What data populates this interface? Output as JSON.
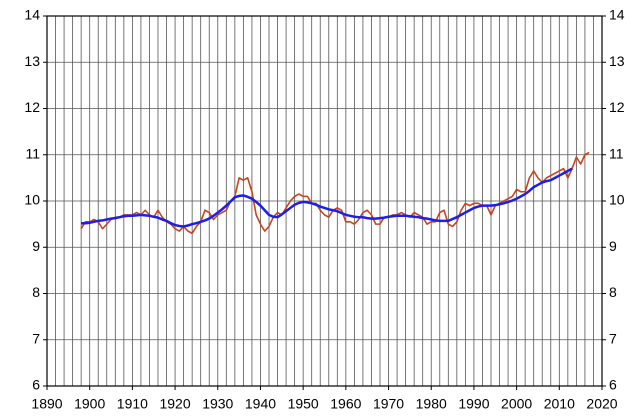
{
  "chart_data": {
    "type": "line",
    "x": [
      1898,
      1899,
      1900,
      1901,
      1902,
      1903,
      1904,
      1905,
      1906,
      1907,
      1908,
      1909,
      1910,
      1911,
      1912,
      1913,
      1914,
      1915,
      1916,
      1917,
      1918,
      1919,
      1920,
      1921,
      1922,
      1923,
      1924,
      1925,
      1926,
      1927,
      1928,
      1929,
      1930,
      1931,
      1932,
      1933,
      1934,
      1935,
      1936,
      1937,
      1938,
      1939,
      1940,
      1941,
      1942,
      1943,
      1944,
      1945,
      1946,
      1947,
      1948,
      1949,
      1950,
      1951,
      1952,
      1953,
      1954,
      1955,
      1956,
      1957,
      1958,
      1959,
      1960,
      1961,
      1962,
      1963,
      1964,
      1965,
      1966,
      1967,
      1968,
      1969,
      1970,
      1971,
      1972,
      1973,
      1974,
      1975,
      1976,
      1977,
      1978,
      1979,
      1980,
      1981,
      1982,
      1983,
      1984,
      1985,
      1986,
      1987,
      1988,
      1989,
      1990,
      1991,
      1992,
      1993,
      1994,
      1995,
      1996,
      1997,
      1998,
      1999,
      2000,
      2001,
      2002,
      2003,
      2004,
      2005,
      2006,
      2007,
      2008,
      2009,
      2010,
      2011,
      2012,
      2013,
      2014,
      2015,
      2016,
      2017
    ],
    "series": [
      {
        "color": "#c8441e",
        "values": [
          9.4,
          9.55,
          9.55,
          9.6,
          9.55,
          9.4,
          9.5,
          9.6,
          9.65,
          9.65,
          9.7,
          9.7,
          9.7,
          9.75,
          9.7,
          9.8,
          9.7,
          9.65,
          9.8,
          9.65,
          9.55,
          9.5,
          9.4,
          9.35,
          9.45,
          9.35,
          9.3,
          9.45,
          9.55,
          9.8,
          9.75,
          9.6,
          9.7,
          9.75,
          9.8,
          10.0,
          10.1,
          10.5,
          10.45,
          10.5,
          10.2,
          9.7,
          9.5,
          9.35,
          9.45,
          9.65,
          9.75,
          9.7,
          9.85,
          10.0,
          10.1,
          10.15,
          10.1,
          10.1,
          9.95,
          9.95,
          9.8,
          9.7,
          9.65,
          9.8,
          9.85,
          9.8,
          9.55,
          9.55,
          9.5,
          9.6,
          9.75,
          9.8,
          9.7,
          9.5,
          9.5,
          9.65,
          9.65,
          9.7,
          9.7,
          9.75,
          9.7,
          9.65,
          9.75,
          9.7,
          9.65,
          9.5,
          9.55,
          9.55,
          9.75,
          9.8,
          9.5,
          9.45,
          9.55,
          9.8,
          9.95,
          9.9,
          9.95,
          9.95,
          9.9,
          9.9,
          9.7,
          9.9,
          9.95,
          10.0,
          10.05,
          10.1,
          10.25,
          10.2,
          10.2,
          10.5,
          10.65,
          10.5,
          10.4,
          10.5,
          10.55,
          10.6,
          10.65,
          10.7,
          10.5,
          10.7,
          10.95,
          10.8,
          11.0,
          11.05
        ]
      },
      {
        "color": "#1e1ee6",
        "values": [
          9.52,
          9.52,
          9.53,
          9.55,
          9.57,
          9.58,
          9.6,
          9.62,
          9.63,
          9.65,
          9.67,
          9.68,
          9.68,
          9.69,
          9.7,
          9.69,
          9.68,
          9.66,
          9.64,
          9.6,
          9.57,
          9.52,
          9.48,
          9.46,
          9.45,
          9.47,
          9.5,
          9.52,
          9.55,
          9.58,
          9.62,
          9.68,
          9.75,
          9.82,
          9.9,
          9.99,
          10.08,
          10.11,
          10.12,
          10.09,
          10.05,
          9.98,
          9.9,
          9.8,
          9.7,
          9.66,
          9.65,
          9.71,
          9.78,
          9.85,
          9.92,
          9.96,
          9.98,
          9.97,
          9.95,
          9.92,
          9.88,
          9.85,
          9.82,
          9.8,
          9.78,
          9.74,
          9.7,
          9.68,
          9.66,
          9.65,
          9.65,
          9.63,
          9.62,
          9.62,
          9.63,
          9.64,
          9.66,
          9.67,
          9.68,
          9.68,
          9.68,
          9.67,
          9.66,
          9.65,
          9.63,
          9.62,
          9.6,
          9.58,
          9.57,
          9.57,
          9.57,
          9.61,
          9.65,
          9.7,
          9.75,
          9.8,
          9.85,
          9.88,
          9.9,
          9.9,
          9.9,
          9.91,
          9.93,
          9.95,
          9.98,
          10.01,
          10.05,
          10.1,
          10.15,
          10.22,
          10.3,
          10.35,
          10.4,
          10.43,
          10.45,
          10.5,
          10.55,
          10.6,
          10.65,
          10.7,
          null,
          null,
          null,
          null
        ]
      }
    ],
    "xlim": [
      1890,
      2020
    ],
    "xticks": [
      1890,
      1900,
      1910,
      1920,
      1930,
      1940,
      1950,
      1960,
      1970,
      1980,
      1990,
      2000,
      2010,
      2020
    ],
    "xminorticks": [
      1890,
      1892,
      1894,
      1896,
      1898,
      1900,
      1902,
      1904,
      1906,
      1908,
      1910,
      1912,
      1914,
      1916,
      1918,
      1920,
      1922,
      1924,
      1926,
      1928,
      1930,
      1932,
      1934,
      1936,
      1938,
      1940,
      1942,
      1944,
      1946,
      1948,
      1950,
      1952,
      1954,
      1956,
      1958,
      1960,
      1962,
      1964,
      1966,
      1968,
      1970,
      1972,
      1974,
      1976,
      1978,
      1980,
      1982,
      1984,
      1986,
      1988,
      1990,
      1992,
      1994,
      1996,
      1998,
      2000,
      2002,
      2004,
      2006,
      2008,
      2010,
      2012,
      2014,
      2016,
      2018,
      2020
    ],
    "ylim": [
      6,
      14
    ],
    "yticks": [
      6,
      7,
      8,
      9,
      10,
      11,
      12,
      13,
      14
    ],
    "grid": true
  }
}
